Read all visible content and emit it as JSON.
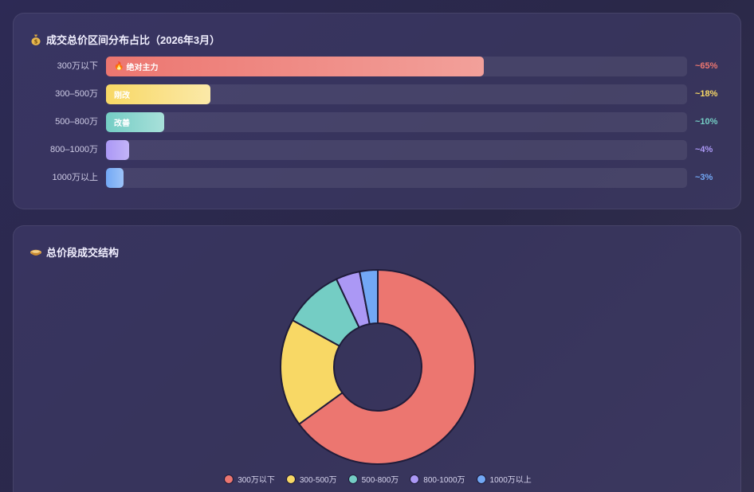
{
  "top_card": {
    "title": "成交总价区间分布占比（2026年3月）",
    "icon": "money-bag-icon"
  },
  "bottom_card": {
    "title": "总价段成交结构",
    "icon": "pie-bowl-icon"
  },
  "colors": {
    "red": "#ec7670",
    "yellow": "#f8d865",
    "teal": "#74cdc4",
    "purple": "#ab98f5",
    "blue": "#72a8f5"
  },
  "chart_data": [
    {
      "type": "bar",
      "orientation": "horizontal",
      "categories": [
        "300万以下",
        "300–500万",
        "500–800万",
        "800–1000万",
        "1000万以上"
      ],
      "values": [
        65,
        18,
        10,
        4,
        3
      ],
      "value_labels": [
        "~65%",
        "~18%",
        "~10%",
        "~4%",
        "~3%"
      ],
      "bar_tags": [
        "绝对主力",
        "刚改",
        "改善",
        "",
        ""
      ],
      "tag_icons": [
        "fire-icon",
        "",
        "",
        "",
        ""
      ],
      "xlim": [
        0,
        100
      ],
      "colors": [
        "#ec7670",
        "#f8d865",
        "#74cdc4",
        "#ab98f5",
        "#72a8f5"
      ]
    },
    {
      "type": "pie",
      "donut": true,
      "categories": [
        "300万以下",
        "300–500万",
        "500–800万",
        "800–1000万",
        "1000万以上"
      ],
      "values": [
        65,
        18,
        10,
        4,
        3
      ],
      "colors": [
        "#ec7670",
        "#f8d865",
        "#74cdc4",
        "#ab98f5",
        "#72a8f5"
      ],
      "legend": [
        "300万以下",
        "300-500万",
        "500-800万",
        "800-1000万",
        "1000万以上"
      ],
      "legend_position": "bottom"
    }
  ]
}
